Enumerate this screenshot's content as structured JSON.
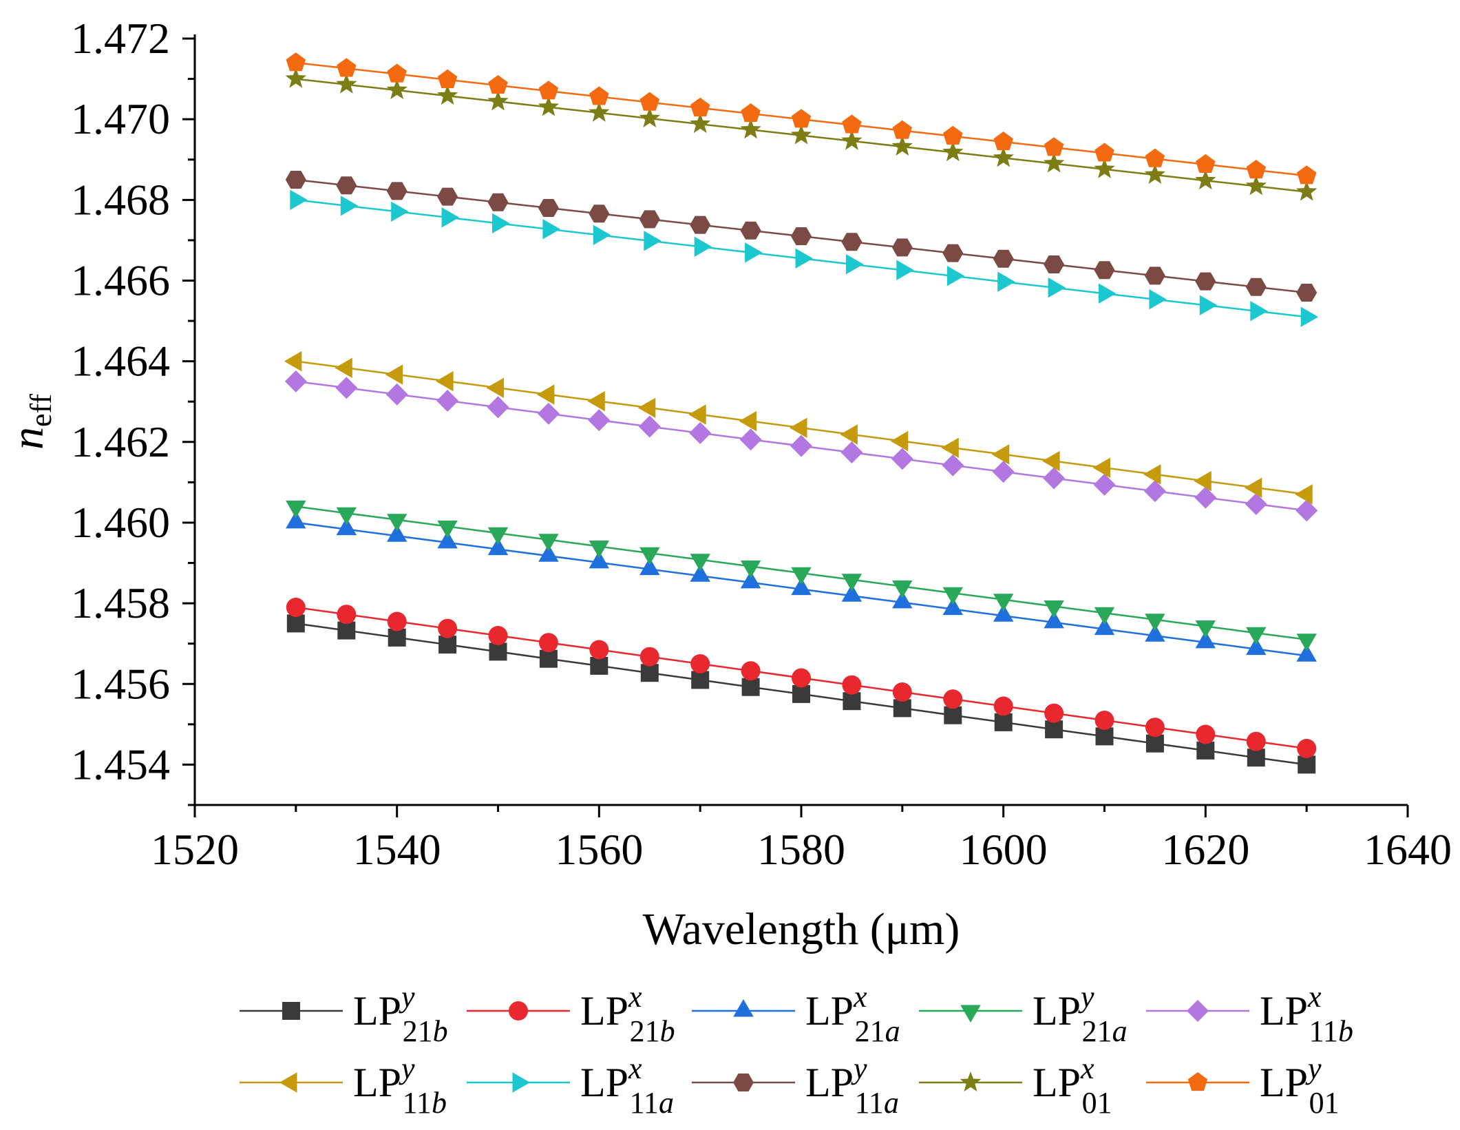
{
  "chart_data": {
    "type": "line",
    "title": "",
    "xlabel": "Wavelength (μm)",
    "ylabel_main": "n",
    "ylabel_sub": "eff",
    "xlim": [
      1520,
      1640
    ],
    "ylim": [
      1.453,
      1.472
    ],
    "xticks": [
      1520,
      1540,
      1560,
      1580,
      1600,
      1620,
      1640
    ],
    "yticks": [
      1.454,
      1.456,
      1.458,
      1.46,
      1.462,
      1.464,
      1.466,
      1.468,
      1.47,
      1.472
    ],
    "ytick_labels": [
      "1.454",
      "1.456",
      "1.458",
      "1.460",
      "1.462",
      "1.464",
      "1.466",
      "1.468",
      "1.470",
      "1.472"
    ],
    "grid": false,
    "legend_position": "bottom",
    "x": [
      1530,
      1535,
      1540,
      1545,
      1550,
      1555,
      1560,
      1565,
      1570,
      1575,
      1580,
      1585,
      1590,
      1595,
      1600,
      1605,
      1610,
      1615,
      1620,
      1625,
      1630
    ],
    "series": [
      {
        "base": "LP",
        "sup": "y",
        "sub": "21b",
        "color": "#3a3a3a",
        "marker": "square",
        "start": 1.4575,
        "end": 1.454
      },
      {
        "base": "LP",
        "sup": "x",
        "sub": "21b",
        "color": "#e8282e",
        "marker": "circle",
        "start": 1.4579,
        "end": 1.4544
      },
      {
        "base": "LP",
        "sup": "x",
        "sub": "21a",
        "color": "#1f6fdc",
        "marker": "triangle-up",
        "start": 1.46,
        "end": 1.4567
      },
      {
        "base": "LP",
        "sup": "y",
        "sub": "21a",
        "color": "#29a85a",
        "marker": "triangle-down",
        "start": 1.4604,
        "end": 1.4571
      },
      {
        "base": "LP",
        "sup": "x",
        "sub": "11b",
        "color": "#b277e0",
        "marker": "diamond",
        "start": 1.4635,
        "end": 1.4603
      },
      {
        "base": "LP",
        "sup": "y",
        "sub": "11b",
        "color": "#c59a0d",
        "marker": "triangle-left",
        "start": 1.464,
        "end": 1.4607
      },
      {
        "base": "LP",
        "sup": "x",
        "sub": "11a",
        "color": "#1cc8cf",
        "marker": "triangle-right",
        "start": 1.468,
        "end": 1.4651
      },
      {
        "base": "LP",
        "sup": "y",
        "sub": "11a",
        "color": "#7b4a44",
        "marker": "hexagon",
        "start": 1.4685,
        "end": 1.4657
      },
      {
        "base": "LP",
        "sup": "x",
        "sub": "01",
        "color": "#7c7d14",
        "marker": "star",
        "start": 1.471,
        "end": 1.4682
      },
      {
        "base": "LP",
        "sup": "y",
        "sub": "01",
        "color": "#f46a10",
        "marker": "pentagon",
        "start": 1.4714,
        "end": 1.4686
      }
    ]
  }
}
